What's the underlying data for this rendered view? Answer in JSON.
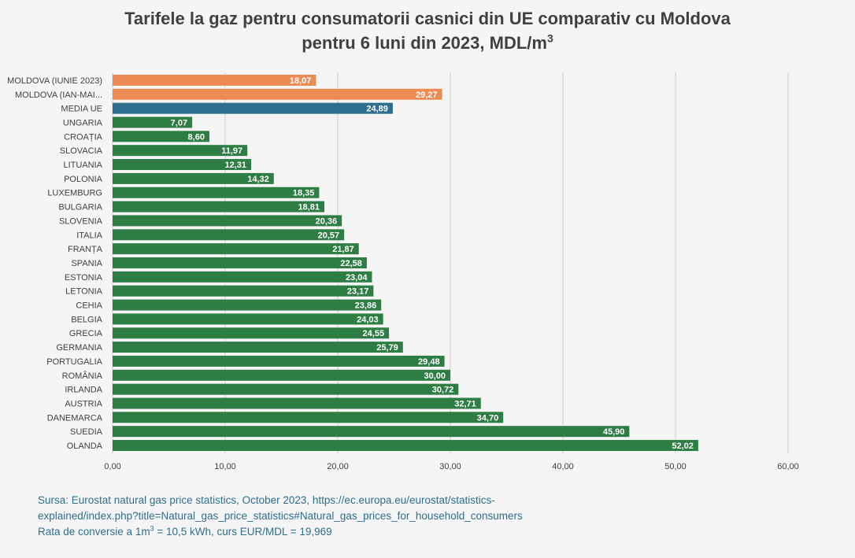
{
  "chart_data": {
    "type": "bar",
    "orientation": "horizontal",
    "title_line1": "Tarifele la gaz pentru consumatorii casnici din UE comparativ cu Moldova",
    "title_line2": "pentru 6 luni din 2023, MDL/m",
    "title_sup": "3",
    "categories": [
      "MOLDOVA (IUNIE 2023)",
      "MOLDOVA (IAN-MAI...",
      "MEDIA UE",
      "UNGARIA",
      "CROAȚIA",
      "SLOVACIA",
      "LITUANIA",
      "POLONIA",
      "LUXEMBURG",
      "BULGARIA",
      "SLOVENIA",
      "ITALIA",
      "FRANȚA",
      "SPANIA",
      "ESTONIA",
      "LETONIA",
      "CEHIA",
      "BELGIA",
      "GRECIA",
      "GERMANIA",
      "PORTUGALIA",
      "ROMÂNIA",
      "IRLANDA",
      "AUSTRIA",
      "DANEMARCA",
      "SUEDIA",
      "OLANDA"
    ],
    "values": [
      18.07,
      29.27,
      24.89,
      7.07,
      8.6,
      11.97,
      12.31,
      14.32,
      18.35,
      18.81,
      20.36,
      20.57,
      21.87,
      22.58,
      23.04,
      23.17,
      23.86,
      24.03,
      24.55,
      25.79,
      29.48,
      30.0,
      30.72,
      32.71,
      34.7,
      45.9,
      52.02
    ],
    "value_labels": [
      "18,07",
      "29,27",
      "24,89",
      "7,07",
      "8,60",
      "11,97",
      "12,31",
      "14,32",
      "18,35",
      "18,81",
      "20,36",
      "20,57",
      "21,87",
      "22,58",
      "23,04",
      "23,17",
      "23,86",
      "24,03",
      "24,55",
      "25,79",
      "29,48",
      "30,00",
      "30,72",
      "32,71",
      "34,70",
      "45,90",
      "52,02"
    ],
    "bar_colors": [
      "#ed8b55",
      "#ed8b55",
      "#2e6e8e",
      "#2e7d44",
      "#2e7d44",
      "#2e7d44",
      "#2e7d44",
      "#2e7d44",
      "#2e7d44",
      "#2e7d44",
      "#2e7d44",
      "#2e7d44",
      "#2e7d44",
      "#2e7d44",
      "#2e7d44",
      "#2e7d44",
      "#2e7d44",
      "#2e7d44",
      "#2e7d44",
      "#2e7d44",
      "#2e7d44",
      "#2e7d44",
      "#2e7d44",
      "#2e7d44",
      "#2e7d44",
      "#2e7d44",
      "#2e7d44"
    ],
    "xlim": [
      0,
      60
    ],
    "xticks": [
      0,
      10,
      20,
      30,
      40,
      50,
      60
    ],
    "xtick_labels": [
      "0,00",
      "10,00",
      "20,00",
      "30,00",
      "40,00",
      "50,00",
      "60,00"
    ],
    "grid": "vertical",
    "legend": "none"
  },
  "footer": {
    "line1": "Sursa: Eurostat natural gas price statistics, October 2023, https://ec.europa.eu/eurostat/statistics-",
    "line2": "explained/index.php?title=Natural_gas_price_statistics#Natural_gas_prices_for_household_consumers",
    "line3_pre": "Rata de conversie a 1m",
    "line3_sup": "3",
    "line3_post": " = 10,5 kWh, curs EUR/MDL = 19,969"
  }
}
